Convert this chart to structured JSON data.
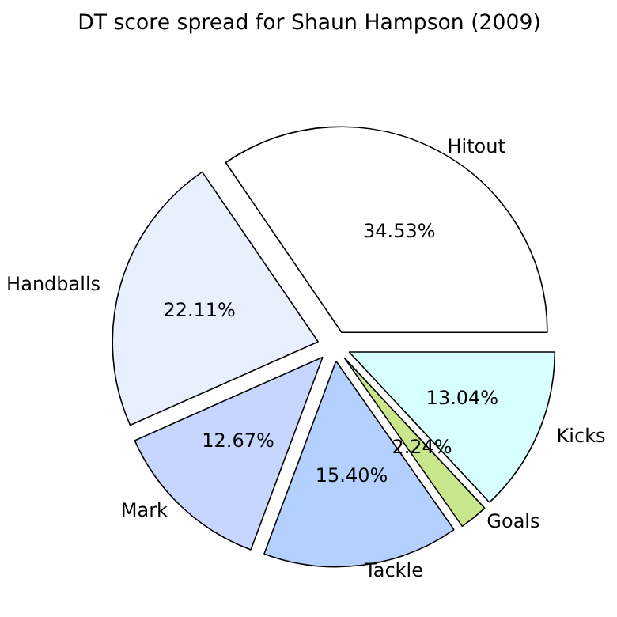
{
  "chart_data": {
    "type": "pie",
    "title": "DT score spread for Shaun Hampson (2009)",
    "categories": [
      "Hitout",
      "Handballs",
      "Mark",
      "Tackle",
      "Goals",
      "Kicks"
    ],
    "values": [
      34.53,
      22.11,
      12.67,
      15.4,
      2.24,
      13.04
    ],
    "value_labels": [
      "34.53%",
      "22.11%",
      "12.67%",
      "15.40%",
      "2.24%",
      "13.04%"
    ],
    "colors": [
      "#ffffff",
      "#e8efff",
      "#c6d6ff",
      "#b4d0ff",
      "#c8e68c",
      "#d8ffff"
    ],
    "legend": false
  }
}
